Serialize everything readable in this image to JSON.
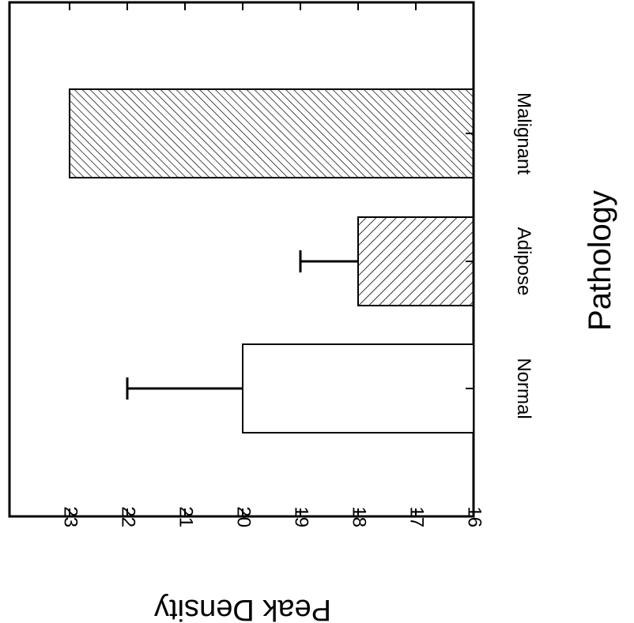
{
  "chart_data": {
    "type": "bar",
    "orientation": "horizontal (figure rotated 180°, text upside down)",
    "categories": [
      "Normal",
      "Adipose",
      "Malignant"
    ],
    "values": [
      20,
      18,
      23
    ],
    "error_plus": [
      2,
      1,
      null
    ],
    "fills": [
      "none",
      "hatch-sparse",
      "hatch-dense"
    ],
    "xlabel": "Peak Density",
    "ylabel": "Pathology",
    "xlim": [
      16,
      23.75
    ],
    "ticks": [
      16,
      17,
      18,
      19,
      20,
      21,
      22,
      23
    ],
    "grid": false,
    "legend": "none"
  },
  "colors": {
    "ink": "#000000",
    "background": "#ffffff"
  }
}
